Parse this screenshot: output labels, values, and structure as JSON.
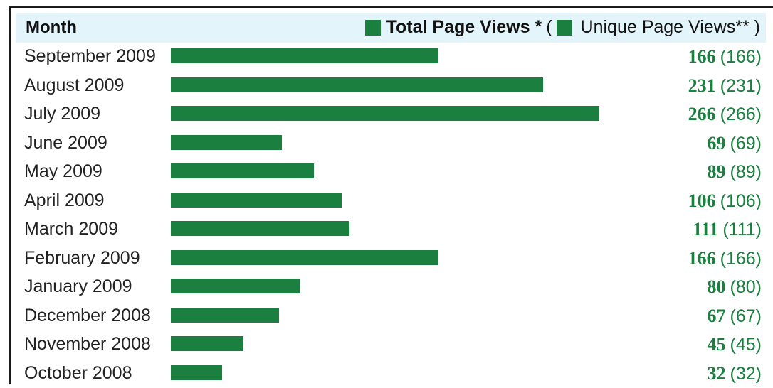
{
  "header": {
    "month_label": "Month",
    "total_label": "Total Page Views *",
    "open_paren": "(",
    "unique_label": "Unique Page Views** )"
  },
  "chart_data": {
    "type": "bar",
    "orientation": "horizontal",
    "categories": [
      "September 2009",
      "August 2009",
      "July 2009",
      "June 2009",
      "May 2009",
      "April 2009",
      "March 2009",
      "February 2009",
      "January 2009",
      "December 2008",
      "November 2008",
      "October 2008"
    ],
    "series": [
      {
        "name": "Total Page Views *",
        "values": [
          166,
          231,
          266,
          69,
          89,
          106,
          111,
          166,
          80,
          67,
          45,
          32
        ]
      },
      {
        "name": "Unique Page Views**",
        "values": [
          166,
          231,
          266,
          69,
          89,
          106,
          111,
          166,
          80,
          67,
          45,
          32
        ]
      }
    ],
    "value_labels": {
      "total": [
        "166",
        "231",
        "266",
        "69",
        "89",
        "106",
        "111",
        "166",
        "80",
        "67",
        "45",
        "32"
      ],
      "unique": [
        "(166)",
        "(231)",
        "(266)",
        "(69)",
        "(89)",
        "(106)",
        "(111)",
        "(166)",
        "(80)",
        "(67)",
        "(45)",
        "(32)"
      ]
    },
    "bar_color": "#1a7f3f",
    "header_color": "#e3f4fb",
    "legend_position": "top-right",
    "grid": false
  }
}
